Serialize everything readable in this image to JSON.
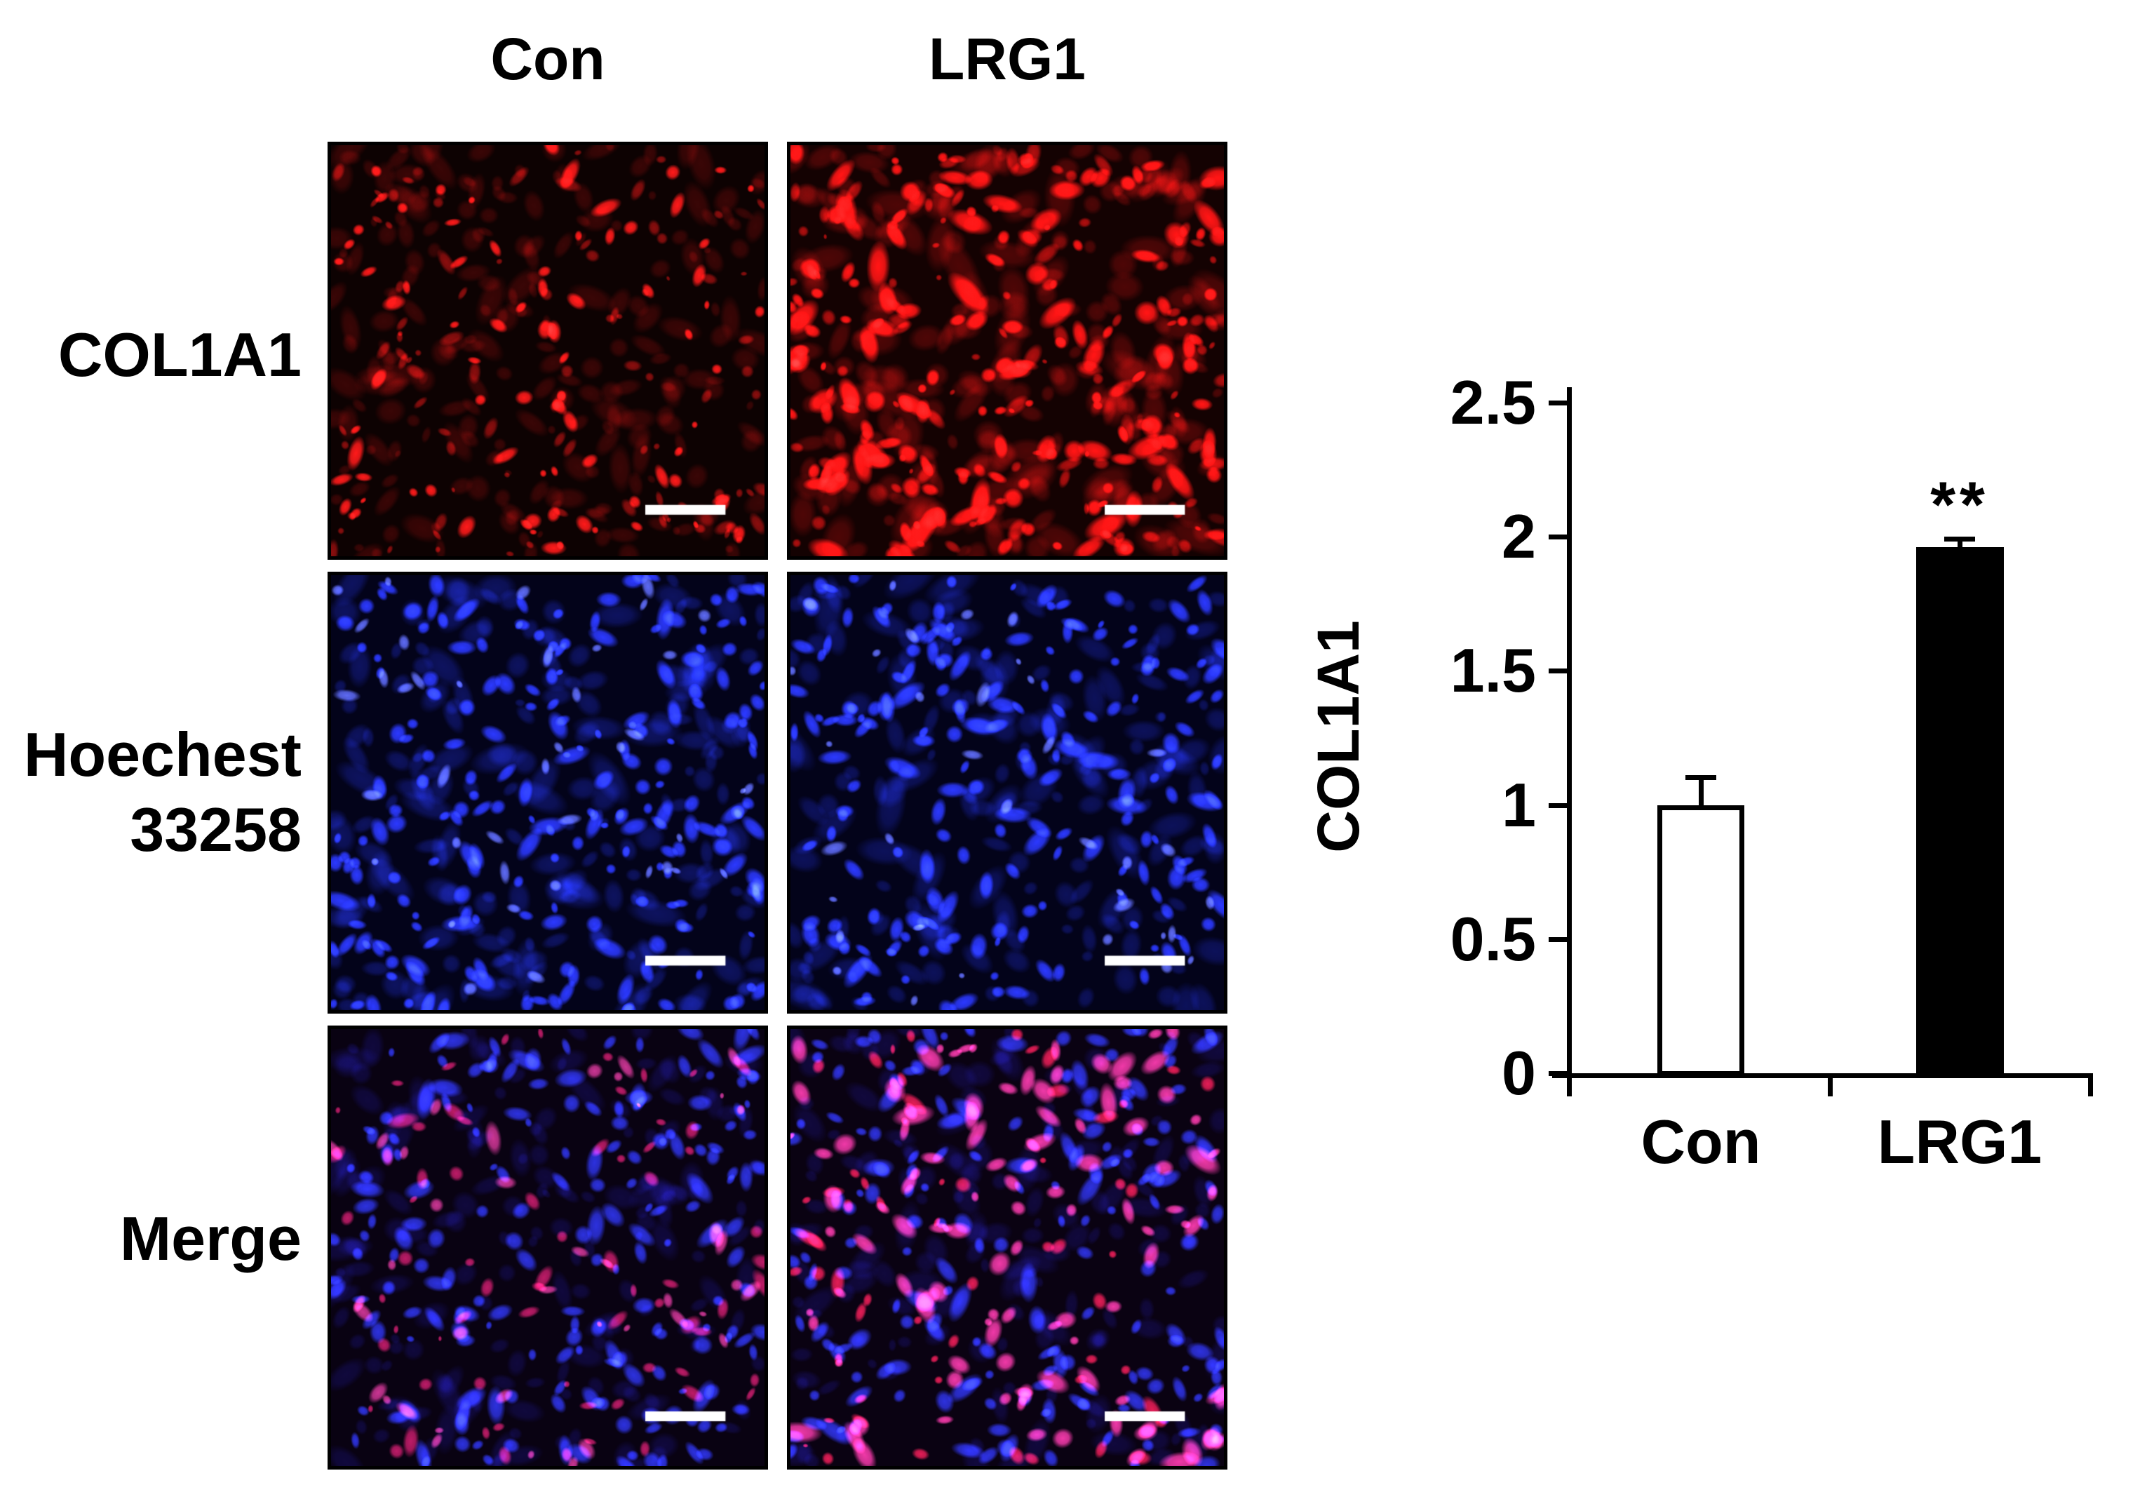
{
  "figure": {
    "column_headers": {
      "con": "Con",
      "lrg1": "LRG1"
    },
    "row_labels": {
      "col1a1": "COL1A1",
      "hoechst_line1": "Hoechest",
      "hoechst_line2": "33258",
      "merge": "Merge"
    }
  },
  "panels": [
    {
      "stain": "COL1A1",
      "condition": "Con",
      "background": "#0d0202",
      "seed": 11,
      "layers": [
        {
          "color": "#5a0808",
          "alpha": 0.5,
          "count": 230,
          "rmin": 3,
          "rmax": 10
        },
        {
          "color": "#a81010",
          "alpha": 0.75,
          "count": 90,
          "rmin": 2,
          "rmax": 5
        },
        {
          "color": "#ff1a1a",
          "alpha": 0.95,
          "count": 80,
          "rmin": 2.5,
          "rmax": 6
        }
      ],
      "scale_bar": {
        "present": true,
        "color": "#ffffff"
      }
    },
    {
      "stain": "COL1A1",
      "condition": "LRG1",
      "background": "#140202",
      "seed": 22,
      "layers": [
        {
          "color": "#6a0909",
          "alpha": 0.55,
          "count": 260,
          "rmin": 4,
          "rmax": 12
        },
        {
          "color": "#c41010",
          "alpha": 0.8,
          "count": 120,
          "rmin": 2,
          "rmax": 6
        },
        {
          "color": "#ff1515",
          "alpha": 0.95,
          "count": 150,
          "rmin": 3,
          "rmax": 9
        }
      ],
      "scale_bar": {
        "present": true,
        "color": "#ffffff"
      }
    },
    {
      "stain": "Hoechest 33258",
      "condition": "Con",
      "background": "#03031a",
      "seed": 33,
      "layers": [
        {
          "color": "#16208a",
          "alpha": 0.5,
          "count": 200,
          "rmin": 4,
          "rmax": 11
        },
        {
          "color": "#2d3cff",
          "alpha": 0.9,
          "count": 210,
          "rmin": 3,
          "rmax": 7
        },
        {
          "color": "#6a79ff",
          "alpha": 0.85,
          "count": 40,
          "rmin": 2,
          "rmax": 5
        }
      ],
      "scale_bar": {
        "present": true,
        "color": "#ffffff"
      }
    },
    {
      "stain": "Hoechest 33258",
      "condition": "LRG1",
      "background": "#03031a",
      "seed": 44,
      "layers": [
        {
          "color": "#141d80",
          "alpha": 0.5,
          "count": 190,
          "rmin": 4,
          "rmax": 11
        },
        {
          "color": "#2d3cff",
          "alpha": 0.9,
          "count": 190,
          "rmin": 3,
          "rmax": 7
        },
        {
          "color": "#6a79ff",
          "alpha": 0.85,
          "count": 35,
          "rmin": 2,
          "rmax": 5
        }
      ],
      "scale_bar": {
        "present": true,
        "color": "#ffffff"
      }
    },
    {
      "stain": "Merge",
      "condition": "Con",
      "background": "#090212",
      "seed": 55,
      "layers": [
        {
          "color": "#101060",
          "alpha": 0.45,
          "count": 180,
          "rmin": 4,
          "rmax": 10
        },
        {
          "color": "#2a38f0",
          "alpha": 0.85,
          "count": 190,
          "rmin": 3,
          "rmax": 7
        },
        {
          "color": "#e0206a",
          "alpha": 0.8,
          "count": 70,
          "rmin": 2,
          "rmax": 6
        },
        {
          "color": "#f040a0",
          "alpha": 0.8,
          "count": 40,
          "rmin": 2,
          "rmax": 6
        }
      ],
      "scale_bar": {
        "present": true,
        "color": "#ffffff"
      }
    },
    {
      "stain": "Merge",
      "condition": "LRG1",
      "background": "#0a0212",
      "seed": 66,
      "layers": [
        {
          "color": "#101060",
          "alpha": 0.45,
          "count": 170,
          "rmin": 4,
          "rmax": 10
        },
        {
          "color": "#2a38f0",
          "alpha": 0.85,
          "count": 180,
          "rmin": 3,
          "rmax": 7
        },
        {
          "color": "#ff2050",
          "alpha": 0.85,
          "count": 60,
          "rmin": 2,
          "rmax": 6
        },
        {
          "color": "#ff3da6",
          "alpha": 0.9,
          "count": 110,
          "rmin": 3,
          "rmax": 8
        }
      ],
      "scale_bar": {
        "present": true,
        "color": "#ffffff"
      }
    }
  ],
  "chart_data": {
    "type": "bar",
    "title": "",
    "xlabel": "",
    "ylabel": "COL1A1",
    "categories": [
      "Con",
      "LRG1"
    ],
    "values": [
      1.0,
      1.96
    ],
    "errors": [
      0.1,
      0.03
    ],
    "bar_colors": [
      "#ffffff",
      "#000000"
    ],
    "bar_border_color": "#000000",
    "ylim": [
      0,
      2.5
    ],
    "yticks": [
      0,
      0.5,
      1,
      1.5,
      2,
      2.5
    ],
    "ytick_labels": [
      "0",
      "0.5",
      "1",
      "1.5",
      "2",
      "2.5"
    ],
    "significance": {
      "category": "LRG1",
      "label": "**"
    },
    "grid": false,
    "legend": null
  }
}
